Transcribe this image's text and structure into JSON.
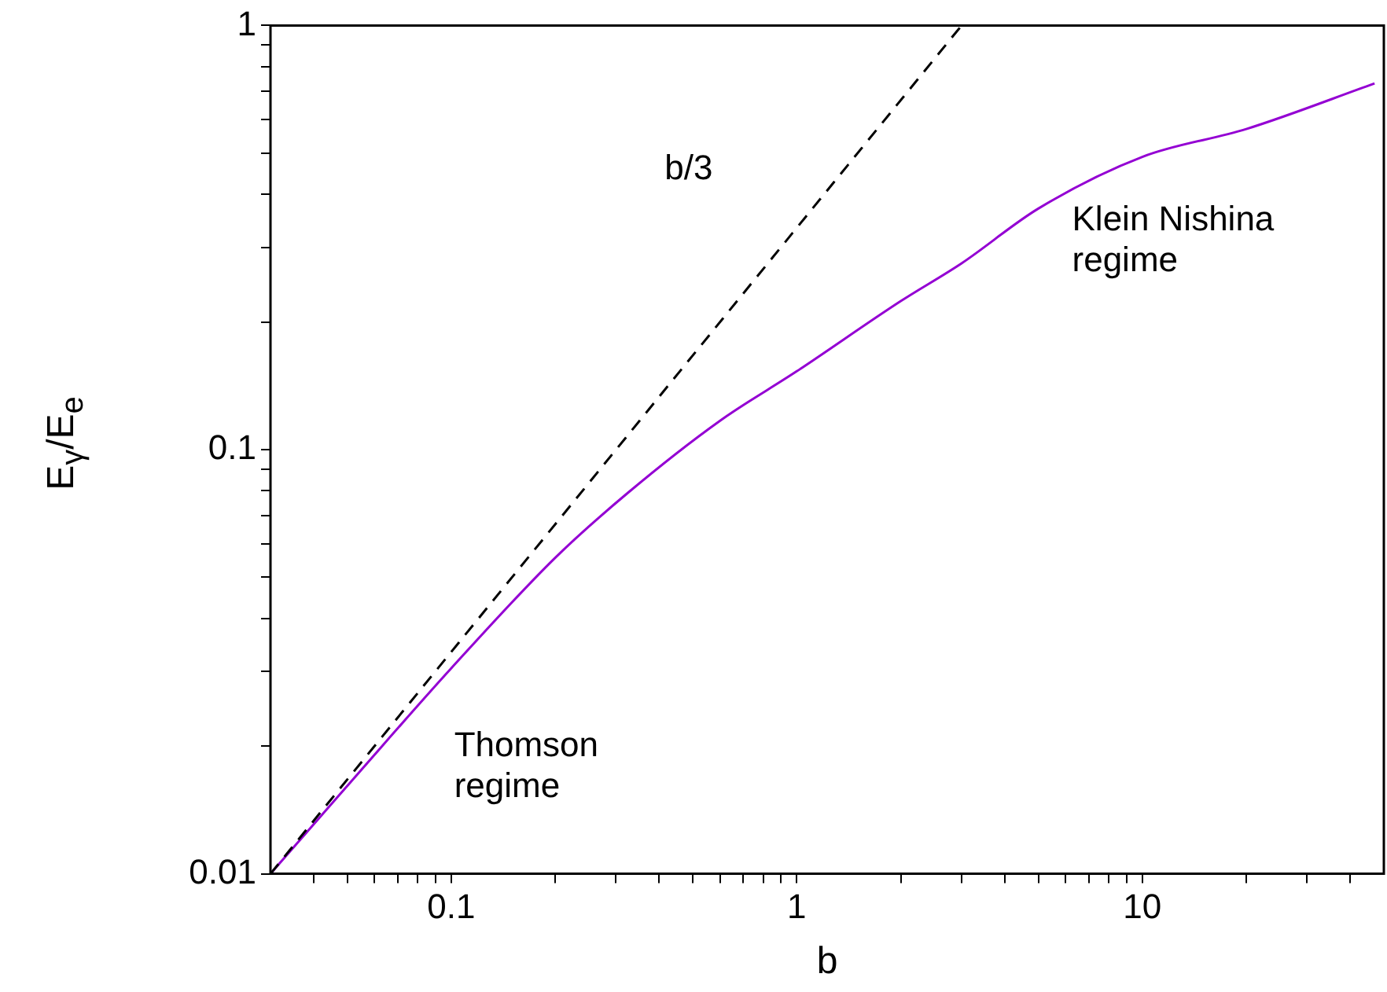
{
  "chart_data": {
    "type": "line",
    "xlabel": "b",
    "ylabel": "E$_{γ}$/E$_{e}$",
    "log": "xy",
    "grid": false,
    "legend": false,
    "marker": "none",
    "xlim": [
      0.03,
      50
    ],
    "ylim": [
      0.01,
      1
    ],
    "xticks": [
      {
        "value": 0.04,
        "label": null
      },
      {
        "value": 0.05,
        "label": null
      },
      {
        "value": 0.06,
        "label": null
      },
      {
        "value": 0.07,
        "label": null
      },
      {
        "value": 0.08,
        "label": null
      },
      {
        "value": 0.09,
        "label": null
      },
      0.1,
      {
        "value": 0.2,
        "label": null
      },
      {
        "value": 0.3,
        "label": null
      },
      {
        "value": 0.4,
        "label": null
      },
      {
        "value": 0.5,
        "label": null
      },
      {
        "value": 0.6,
        "label": null
      },
      {
        "value": 0.7,
        "label": null
      },
      {
        "value": 0.8,
        "label": null
      },
      {
        "value": 0.9,
        "label": null
      },
      1,
      {
        "value": 2,
        "label": null
      },
      {
        "value": 3,
        "label": null
      },
      {
        "value": 4,
        "label": null
      },
      {
        "value": 5,
        "label": null
      },
      {
        "value": 6,
        "label": null
      },
      {
        "value": 7,
        "label": null
      },
      {
        "value": 8,
        "label": null
      },
      {
        "value": 9,
        "label": null
      },
      10,
      {
        "value": 20,
        "label": null
      },
      {
        "value": 30,
        "label": null
      },
      {
        "value": 40,
        "label": null
      }
    ],
    "yticks": [
      0.01,
      {
        "value": 0.02,
        "label": null
      },
      {
        "value": 0.03,
        "label": null
      },
      {
        "value": 0.04,
        "label": null
      },
      {
        "value": 0.05,
        "label": null
      },
      {
        "value": 0.06,
        "label": null
      },
      {
        "value": 0.07,
        "label": null
      },
      {
        "value": 0.08,
        "label": null
      },
      {
        "value": 0.09,
        "label": null
      },
      0.1,
      {
        "value": 0.2,
        "label": null
      },
      {
        "value": 0.3,
        "label": null
      },
      {
        "value": 0.4,
        "label": null
      },
      {
        "value": 0.5,
        "label": null
      },
      {
        "value": 0.6,
        "label": null
      },
      {
        "value": 0.7,
        "label": null
      },
      {
        "value": 0.8,
        "label": null
      },
      {
        "value": 0.9,
        "label": null
      },
      1
    ],
    "series": [
      {
        "color": "#000000",
        "line_style": "dashed",
        "x": [
          0.03,
          3
        ],
        "values": [
          0.01,
          1
        ]
      },
      {
        "color": "#9400d3",
        "line_style": "solid",
        "x": [
          0.03,
          0.054,
          0.1,
          0.2,
          0.324,
          0.6,
          1,
          2,
          3,
          5,
          10,
          20,
          47
        ],
        "values": [
          0.01,
          0.0173,
          0.0305,
          0.0556,
          0.079,
          0.117,
          0.153,
          0.224,
          0.275,
          0.37,
          0.49,
          0.57,
          0.73
        ]
      }
    ],
    "annotations": [
      "b/3",
      "Klein Nishina\nregime",
      "Thomson\nregime"
    ]
  }
}
